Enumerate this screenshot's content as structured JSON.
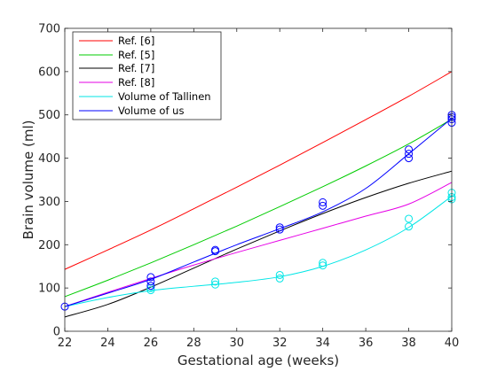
{
  "chart_data": {
    "type": "line",
    "xlabel": "Gestational age (weeks)",
    "ylabel": "Brain volume (ml)",
    "xlim": [
      22,
      40
    ],
    "ylim": [
      0,
      700
    ],
    "x_ticks": [
      22,
      24,
      26,
      28,
      30,
      32,
      34,
      36,
      38,
      40
    ],
    "y_ticks": [
      0,
      100,
      200,
      300,
      400,
      500,
      600,
      700
    ],
    "grid": false,
    "legend_position": "top-left",
    "series": [
      {
        "name": "Ref. [6]",
        "color": "#ff0000",
        "x": [
          22,
          24,
          26,
          28,
          30,
          32,
          34,
          36,
          38,
          40
        ],
        "y": [
          143,
          188,
          234,
          283,
          333,
          384,
          436,
          489,
          543,
          600
        ]
      },
      {
        "name": "Ref. [5]",
        "color": "#00cc00",
        "x": [
          22,
          24,
          26,
          28,
          30,
          32,
          34,
          36,
          38,
          40
        ],
        "y": [
          80,
          118,
          158,
          200,
          243,
          288,
          334,
          382,
          433,
          490
        ]
      },
      {
        "name": "Ref. [7]",
        "color": "#000000",
        "x": [
          22,
          24,
          26,
          28,
          30,
          32,
          34,
          36,
          38,
          40
        ],
        "y": [
          33,
          62,
          102,
          146,
          190,
          232,
          272,
          309,
          342,
          370
        ]
      },
      {
        "name": "Ref. [8]",
        "color": "#e600e6",
        "x": [
          22,
          24,
          26,
          28,
          30,
          32,
          34,
          36,
          38,
          40
        ],
        "y": [
          57,
          90,
          122,
          153,
          182,
          210,
          238,
          266,
          294,
          344
        ]
      },
      {
        "name": "Volume of Tallinen",
        "color": "#00e6e6",
        "x": [
          22,
          24,
          26,
          28,
          30,
          32,
          34,
          36,
          38,
          40
        ],
        "y": [
          57,
          78,
          94,
          104,
          113,
          126,
          150,
          188,
          240,
          312
        ]
      },
      {
        "name": "Volume of us",
        "color": "#0000ff",
        "x": [
          22,
          24,
          26,
          28,
          30,
          32,
          34,
          36,
          38,
          40
        ],
        "y": [
          57,
          88,
          120,
          160,
          200,
          237,
          276,
          330,
          410,
          492
        ]
      }
    ],
    "markers": [
      {
        "series": "Volume of Tallinen",
        "color": "#00e6e6",
        "x": [
          26,
          26,
          29,
          29,
          32,
          32,
          34,
          34,
          38,
          38,
          40,
          40,
          40
        ],
        "y": [
          95,
          100,
          108,
          115,
          122,
          130,
          152,
          158,
          242,
          260,
          305,
          310,
          320
        ]
      },
      {
        "series": "Volume of us",
        "color": "#0000ff",
        "x": [
          22,
          26,
          26,
          26,
          29,
          29,
          32,
          32,
          34,
          34,
          38,
          38,
          38,
          40,
          40,
          40,
          40
        ],
        "y": [
          57,
          105,
          115,
          125,
          185,
          188,
          235,
          240,
          290,
          298,
          400,
          410,
          420,
          482,
          490,
          495,
          500
        ]
      }
    ]
  }
}
